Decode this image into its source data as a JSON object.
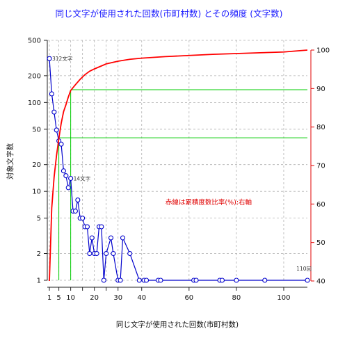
{
  "chart_data": {
    "type": "line",
    "title": "同じ文字が使用された回数(市町村数) とその頻度 (文字数)",
    "xlabel": "同じ文字が使用された回数(市町村数)",
    "ylabel": "対象文字数",
    "x_ticks": [
      1,
      5,
      10,
      15,
      20,
      25,
      30,
      40,
      60,
      80,
      100
    ],
    "x_tick_labels": [
      "1",
      "5",
      "10",
      "",
      "20",
      "",
      "30",
      "40",
      "60",
      "80",
      "100"
    ],
    "xlim": [
      0,
      110
    ],
    "y_scale": "log",
    "ylim": [
      1,
      500
    ],
    "y_ticks": [
      1,
      2,
      5,
      10,
      20,
      50,
      100,
      200,
      500
    ],
    "y_tick_labels": [
      "1",
      "2",
      "5",
      "10",
      "20",
      "50",
      "100",
      "200",
      "500"
    ],
    "y2_ticks": [
      40,
      50,
      60,
      70,
      80,
      90,
      100
    ],
    "y2_tick_labels": [
      "40",
      "50",
      "60",
      "70",
      "80",
      "90",
      "100"
    ],
    "y2lim": [
      40,
      100
    ],
    "y2_color": "#e00000",
    "series": [
      {
        "name": "",
        "color": "#0000cc",
        "marker": "open-circle",
        "x": [
          1,
          2,
          3,
          4,
          5,
          6,
          7,
          8,
          9,
          10,
          11,
          12,
          13,
          14,
          15,
          16,
          17,
          18,
          19,
          20,
          21,
          22,
          23,
          24,
          25,
          27,
          28,
          30,
          31,
          32,
          35,
          39,
          41,
          42,
          47,
          48,
          62,
          63,
          73,
          74,
          80,
          92,
          110
        ],
        "y": [
          312,
          125,
          78,
          49,
          37,
          34,
          17,
          15,
          11,
          14,
          6,
          6,
          8,
          5,
          5,
          4,
          4,
          2,
          3,
          2,
          2,
          4,
          4,
          1,
          2,
          3,
          2,
          1,
          1,
          3,
          2,
          1,
          1,
          1,
          1,
          1,
          1,
          1,
          1,
          1,
          1,
          1,
          1
        ]
      },
      {
        "name": "",
        "axis": "right",
        "color": "#ff0000",
        "x": [
          1,
          2,
          3,
          4,
          5,
          6,
          7,
          8,
          9,
          10,
          12,
          14,
          16,
          18,
          20,
          25,
          30,
          35,
          40,
          50,
          60,
          70,
          80,
          90,
          100,
          110
        ],
        "y": [
          40,
          59,
          67,
          72.5,
          77,
          81,
          84,
          85.8,
          87.8,
          89.5,
          91,
          92.4,
          93.6,
          94.5,
          95.1,
          96.4,
          97.1,
          97.6,
          97.9,
          98.3,
          98.6,
          98.9,
          99.1,
          99.3,
          99.5,
          100
        ]
      }
    ],
    "guide_lines": [
      {
        "x": 5,
        "y2": 77.2,
        "color": "#00cc00"
      },
      {
        "x": 10,
        "y2": 89.7,
        "color": "#00cc00"
      }
    ],
    "annotations": [
      {
        "text": "312文字",
        "x": 1,
        "y": 312
      },
      {
        "text": "14文字",
        "x": 10,
        "y": 14
      },
      {
        "text": "110回",
        "x": 110,
        "y": 1
      }
    ],
    "note": "赤線は累積度数比率(%):右軸",
    "grid": true
  }
}
